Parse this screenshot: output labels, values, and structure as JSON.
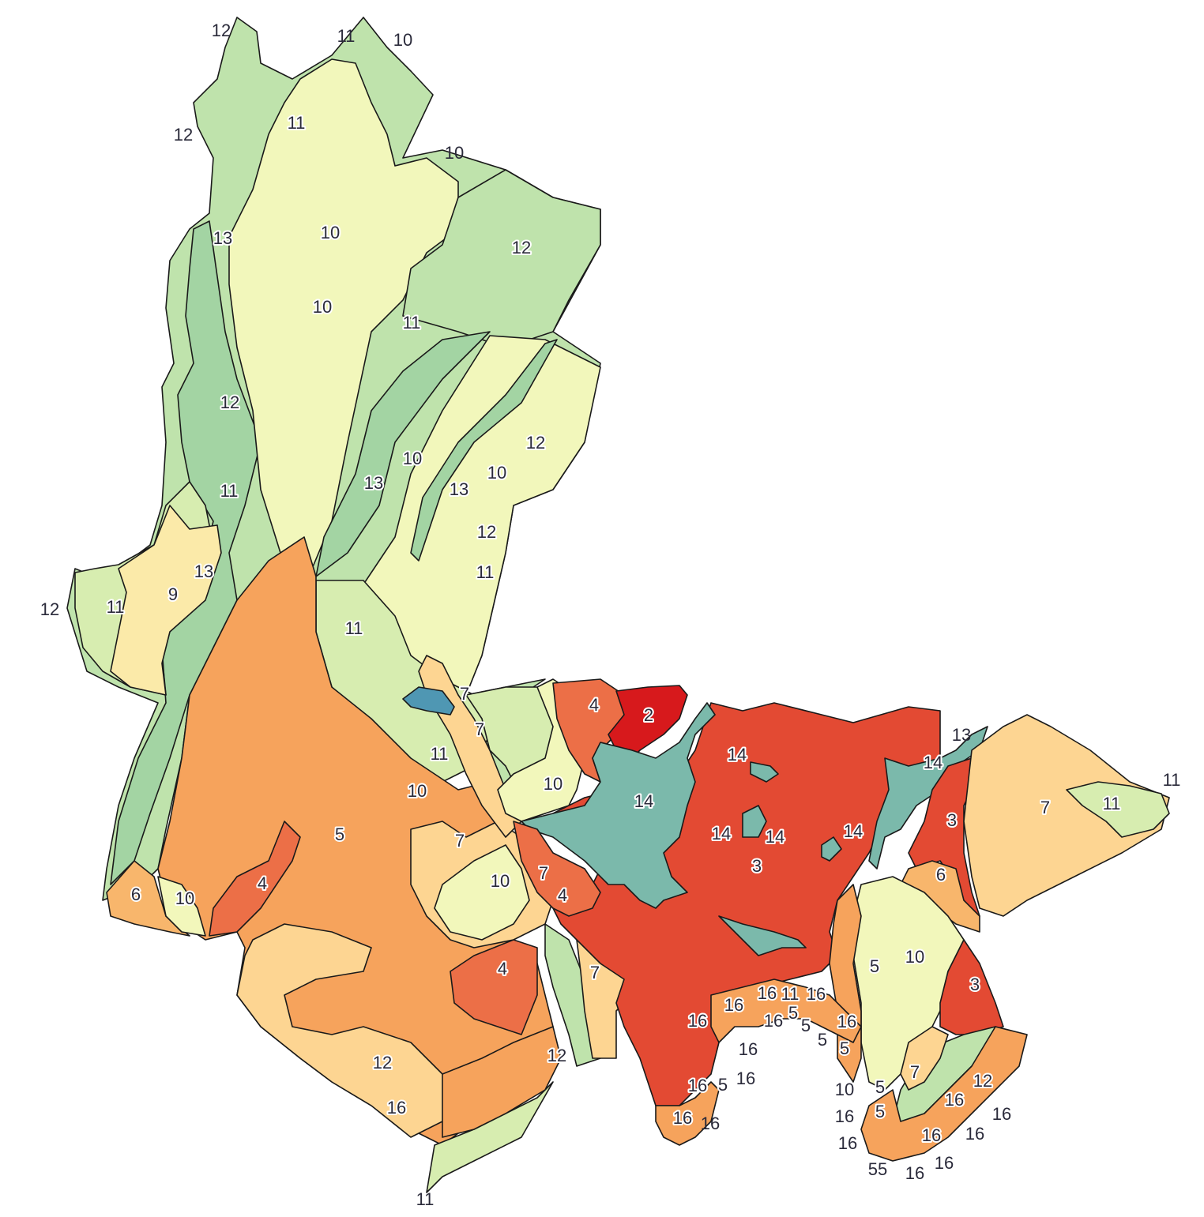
{
  "palette": {
    "2": "#d7191c",
    "3": "#e34a33",
    "4": "#ec6f47",
    "5": "#f6a35c",
    "6": "#f8b66c",
    "7": "#fdd592",
    "9": "#fbeaa9",
    "10": "#f2f7bb",
    "11": "#d7edb0",
    "12": "#bfe3ac",
    "13": "#a3d4a3",
    "14": "#7bb9ab",
    "15": "#4f97b3",
    "16": "#f6a35c"
  },
  "labels": [
    "12",
    "11",
    "10",
    "12",
    "11",
    "10",
    "13",
    "10",
    "12",
    "10",
    "11",
    "12",
    "12",
    "13",
    "10",
    "10",
    "13",
    "11",
    "12",
    "12",
    "11",
    "13",
    "9",
    "11",
    "11",
    "12",
    "11",
    "7",
    "7",
    "4",
    "2",
    "11",
    "13",
    "14",
    "14",
    "10",
    "14",
    "11",
    "14",
    "14",
    "14",
    "11",
    "5",
    "7",
    "3",
    "3",
    "10",
    "7",
    "6",
    "6",
    "10",
    "4",
    "4",
    "7",
    "4",
    "10",
    "5",
    "10",
    "7",
    "16",
    "16",
    "16",
    "16",
    "5",
    "16",
    "5",
    "3",
    "16",
    "5",
    "16",
    "5",
    "16",
    "5",
    "16",
    "5",
    "10",
    "12",
    "7",
    "16",
    "16",
    "16",
    "12",
    "5",
    "16",
    "16",
    "16",
    "16",
    "16",
    "16",
    "55",
    "16",
    "16",
    "11"
  ]
}
